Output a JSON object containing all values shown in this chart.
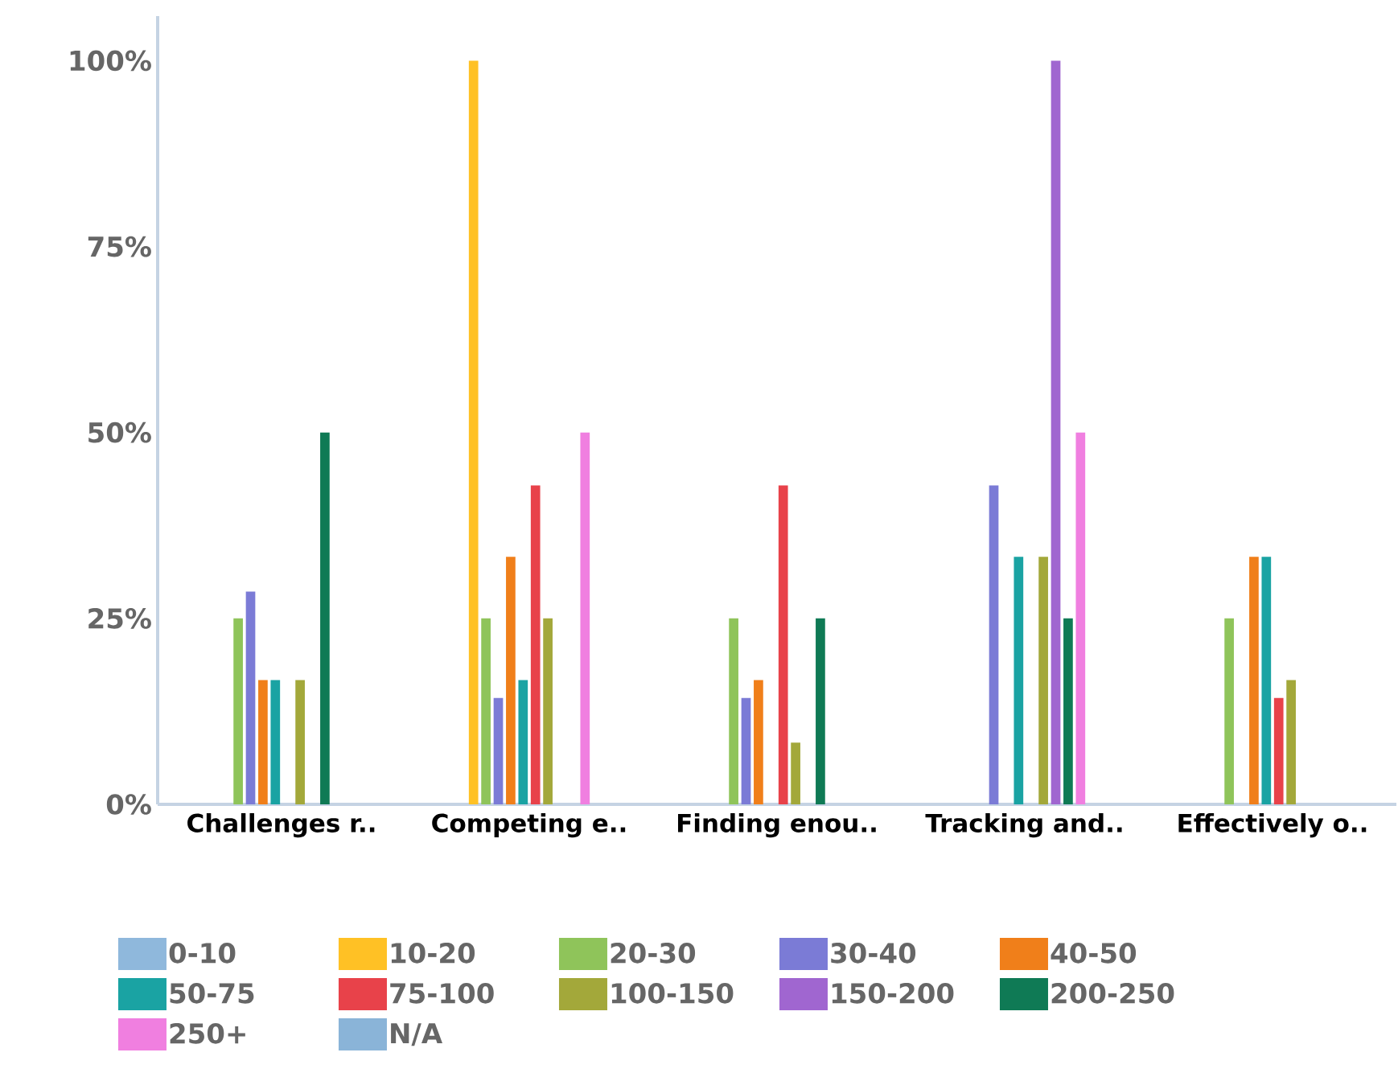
{
  "chart_data": {
    "type": "bar",
    "categories": [
      "Challenges r..",
      "Competing e..",
      "Finding enou..",
      "Tracking and..",
      "Effectively o.."
    ],
    "ylim": [
      0,
      106
    ],
    "yticks": [
      {
        "value": 0,
        "label": "0%"
      },
      {
        "value": 25,
        "label": "25%"
      },
      {
        "value": 50,
        "label": "50%"
      },
      {
        "value": 75,
        "label": "75%"
      },
      {
        "value": 100,
        "label": "100%"
      }
    ],
    "legend": "bottom",
    "series": [
      {
        "name": "0-10",
        "color": "#8fb8dc",
        "values": [
          null,
          null,
          null,
          null,
          null
        ]
      },
      {
        "name": "10-20",
        "color": "#ffc125",
        "values": [
          null,
          100,
          null,
          null,
          null
        ]
      },
      {
        "name": "20-30",
        "color": "#8fc45a",
        "values": [
          25,
          25,
          25,
          null,
          25
        ]
      },
      {
        "name": "30-40",
        "color": "#7b7bd6",
        "values": [
          28.6,
          14.3,
          14.3,
          42.9,
          null
        ]
      },
      {
        "name": "40-50",
        "color": "#f07f1a",
        "values": [
          16.7,
          33.3,
          16.7,
          null,
          33.3
        ]
      },
      {
        "name": "50-75",
        "color": "#1aa3a3",
        "values": [
          16.7,
          16.7,
          null,
          33.3,
          33.3
        ]
      },
      {
        "name": "75-100",
        "color": "#e8424a",
        "values": [
          null,
          42.9,
          42.9,
          null,
          14.3
        ]
      },
      {
        "name": "100-150",
        "color": "#a3a83a",
        "values": [
          16.7,
          25,
          8.3,
          33.3,
          16.7
        ]
      },
      {
        "name": "150-200",
        "color": "#a066d0",
        "values": [
          null,
          null,
          null,
          100,
          null
        ]
      },
      {
        "name": "200-250",
        "color": "#0f7a55",
        "values": [
          50,
          null,
          25,
          25,
          null
        ]
      },
      {
        "name": "250+",
        "color": "#f07fe0",
        "values": [
          null,
          50,
          null,
          50,
          null
        ]
      },
      {
        "name": "N/A",
        "color": "#8ab4d8",
        "values": [
          null,
          null,
          null,
          null,
          null
        ]
      }
    ]
  }
}
